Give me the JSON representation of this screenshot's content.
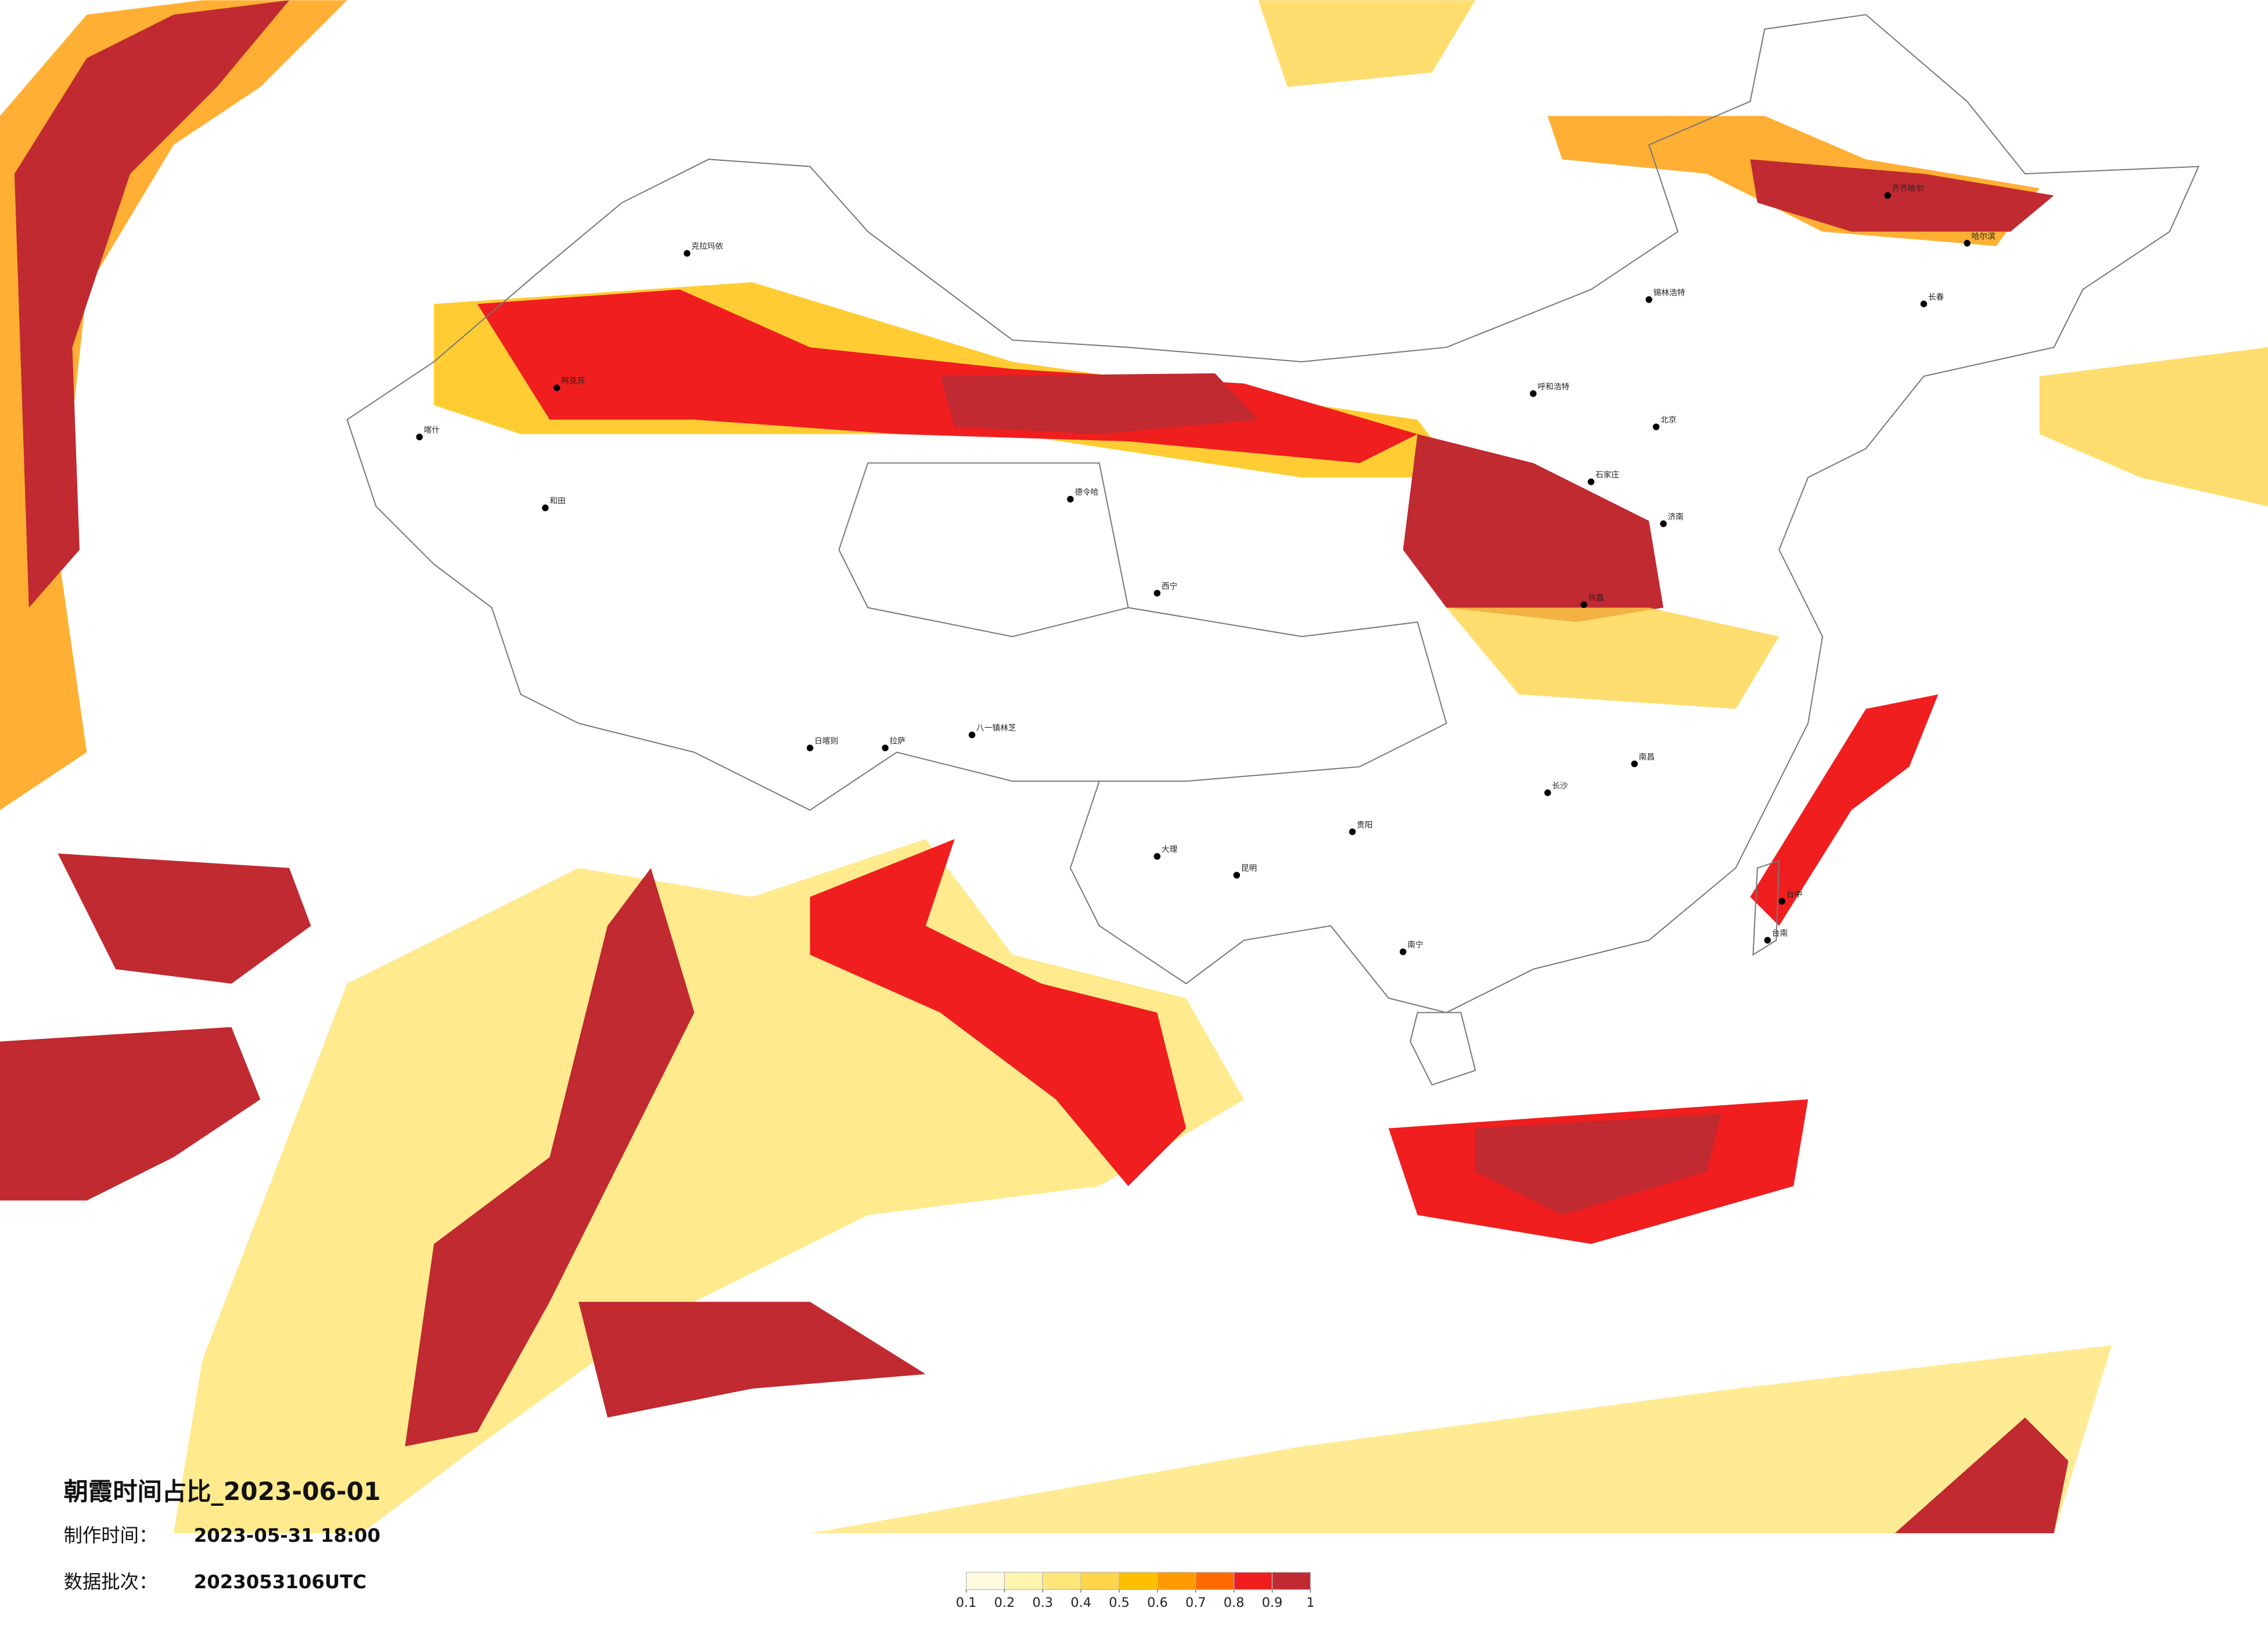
{
  "title": "朝霞时间占比_2023-06-01",
  "made_label": "制作时间：",
  "made_value": "2023-05-31 18:00",
  "batch_label": "数据批次：",
  "batch_value": "2023053106UTC",
  "colorbar": {
    "ticks": [
      0.1,
      0.2,
      0.3,
      0.4,
      0.5,
      0.6,
      0.7,
      0.8,
      0.9,
      1
    ],
    "colors": [
      "#fffbe0",
      "#fff3b0",
      "#ffe679",
      "#ffd54a",
      "#ffc000",
      "#ff9b00",
      "#ff6a00",
      "#f01e1e",
      "#c02a30"
    ]
  },
  "cities": [
    "克拉玛依",
    "阿克苏",
    "和田",
    "喀什",
    "日喀则",
    "拉萨",
    "八一镇林芝",
    "德令哈",
    "西宁",
    "呼和浩特",
    "北京",
    "石家庄",
    "济南",
    "许昌",
    "长沙",
    "南昌",
    "贵阳",
    "昆明",
    "大理",
    "南宁",
    "齐齐哈尔",
    "哈尔滨",
    "长春",
    "锡林浩特",
    "台中",
    "台南"
  ]
}
